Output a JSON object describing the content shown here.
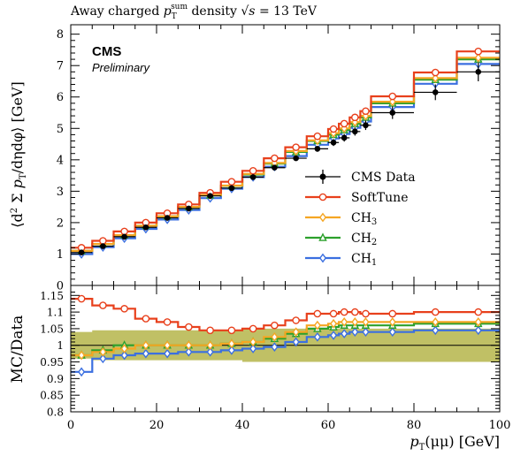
{
  "chart_data": {
    "type": "line",
    "title": "Away charged p_T^sum density √s = 13 TeV",
    "title_parts": {
      "prefix": "Away charged ",
      "pt": "p",
      "pt_sub": "T",
      "pt_sup": "sum",
      "mid": " density ",
      "sqrts": "√s",
      "energy": " = 13 TeV"
    },
    "experiment_label": "CMS",
    "status_label": "Preliminary",
    "xlabel": "p_T(μμ) [GeV]",
    "xlabel_parts": {
      "p": "p",
      "sub": "T",
      "rest": "(μμ) [GeV]"
    },
    "ylabel_top": "⟨d² Σ p_T / dη dφ⟩ [GeV]",
    "ylabel_top_parts": {
      "open": "⟨d",
      "sup2": "2",
      "sum": " Σ ",
      "p": "p",
      "sub": "T",
      "rest": "/dηdφ⟩ [GeV]"
    },
    "ylabel_bottom": "MC/Data",
    "xlim": [
      0,
      100
    ],
    "ylim_top": [
      0,
      8.3
    ],
    "ylim_bottom": [
      0.8,
      1.18
    ],
    "x_ticks": [
      "0",
      "20",
      "40",
      "60",
      "80",
      "100"
    ],
    "y_ticks_top": [
      "0",
      "1",
      "2",
      "3",
      "4",
      "5",
      "6",
      "7",
      "8"
    ],
    "y_ticks_bottom": [
      "0.8",
      "0.85",
      "0.9",
      "0.95",
      "1",
      "1.05",
      "1.1",
      "1.15"
    ],
    "bin_edges": [
      0,
      5,
      10,
      15,
      20,
      25,
      30,
      35,
      40,
      45,
      50,
      55,
      60,
      62.5,
      65,
      67.5,
      70,
      80,
      90,
      100
    ],
    "legend_position": "center-right",
    "legend": [
      "CMS Data",
      "SoftTune",
      "CH3",
      "CH2",
      "CH1"
    ],
    "data": {
      "name": "CMS Data",
      "color": "#000000",
      "values": [
        1.05,
        1.25,
        1.55,
        1.85,
        2.15,
        2.45,
        2.85,
        3.1,
        3.45,
        3.75,
        4.05,
        4.35,
        4.55,
        4.7,
        4.9,
        5.1,
        5.5,
        6.15,
        6.8
      ],
      "stat_errors": [
        0.04,
        0.04,
        0.04,
        0.05,
        0.05,
        0.05,
        0.05,
        0.06,
        0.06,
        0.07,
        0.08,
        0.09,
        0.11,
        0.12,
        0.13,
        0.15,
        0.2,
        0.25,
        0.3
      ]
    },
    "series": [
      {
        "name": "SoftTune",
        "color": "#e8401c",
        "marker": "circle",
        "values": [
          1.2,
          1.42,
          1.72,
          2.0,
          2.3,
          2.58,
          2.95,
          3.3,
          3.65,
          4.05,
          4.4,
          4.75,
          4.98,
          5.15,
          5.35,
          5.55,
          6.02,
          6.78,
          7.45
        ],
        "ratio": [
          1.14,
          1.12,
          1.11,
          1.08,
          1.07,
          1.055,
          1.045,
          1.045,
          1.05,
          1.06,
          1.075,
          1.095,
          1.095,
          1.1,
          1.1,
          1.095,
          1.095,
          1.1,
          1.1
        ]
      },
      {
        "name": "CH3",
        "color": "#f5a623",
        "marker": "diamond",
        "values": [
          1.1,
          1.32,
          1.6,
          1.9,
          2.2,
          2.5,
          2.88,
          3.18,
          3.55,
          3.9,
          4.28,
          4.62,
          4.85,
          5.0,
          5.2,
          5.4,
          5.85,
          6.6,
          7.25
        ],
        "ratio": [
          0.97,
          0.98,
          0.99,
          1.0,
          1.0,
          1.0,
          1.0,
          1.005,
          1.01,
          1.025,
          1.04,
          1.06,
          1.065,
          1.07,
          1.07,
          1.07,
          1.07,
          1.07,
          1.07
        ]
      },
      {
        "name": "CH2",
        "color": "#2ca02c",
        "marker": "triangle",
        "values": [
          1.1,
          1.32,
          1.6,
          1.9,
          2.2,
          2.5,
          2.87,
          3.17,
          3.53,
          3.88,
          4.25,
          4.6,
          4.8,
          4.95,
          5.15,
          5.35,
          5.8,
          6.55,
          7.2
        ],
        "ratio": [
          0.97,
          0.985,
          1.0,
          1.0,
          1.0,
          1.0,
          1.0,
          1.005,
          1.01,
          1.02,
          1.035,
          1.05,
          1.055,
          1.06,
          1.06,
          1.06,
          1.06,
          1.065,
          1.065
        ]
      },
      {
        "name": "CH1",
        "color": "#3b6fe0",
        "marker": "diamond",
        "values": [
          1.0,
          1.22,
          1.5,
          1.8,
          2.1,
          2.4,
          2.78,
          3.08,
          3.45,
          3.78,
          4.12,
          4.48,
          4.68,
          4.82,
          5.02,
          5.22,
          5.68,
          6.42,
          7.05
        ],
        "ratio": [
          0.92,
          0.96,
          0.97,
          0.975,
          0.975,
          0.98,
          0.98,
          0.985,
          0.99,
          0.995,
          1.01,
          1.025,
          1.03,
          1.035,
          1.04,
          1.04,
          1.04,
          1.045,
          1.045
        ]
      }
    ],
    "ratio_band": {
      "color": "#b5b54a",
      "half_width": [
        0.04,
        0.045,
        0.045,
        0.045,
        0.045,
        0.045,
        0.045,
        0.045,
        0.05,
        0.05,
        0.05,
        0.05,
        0.05,
        0.05,
        0.05,
        0.05,
        0.05,
        0.05,
        0.05
      ]
    }
  }
}
